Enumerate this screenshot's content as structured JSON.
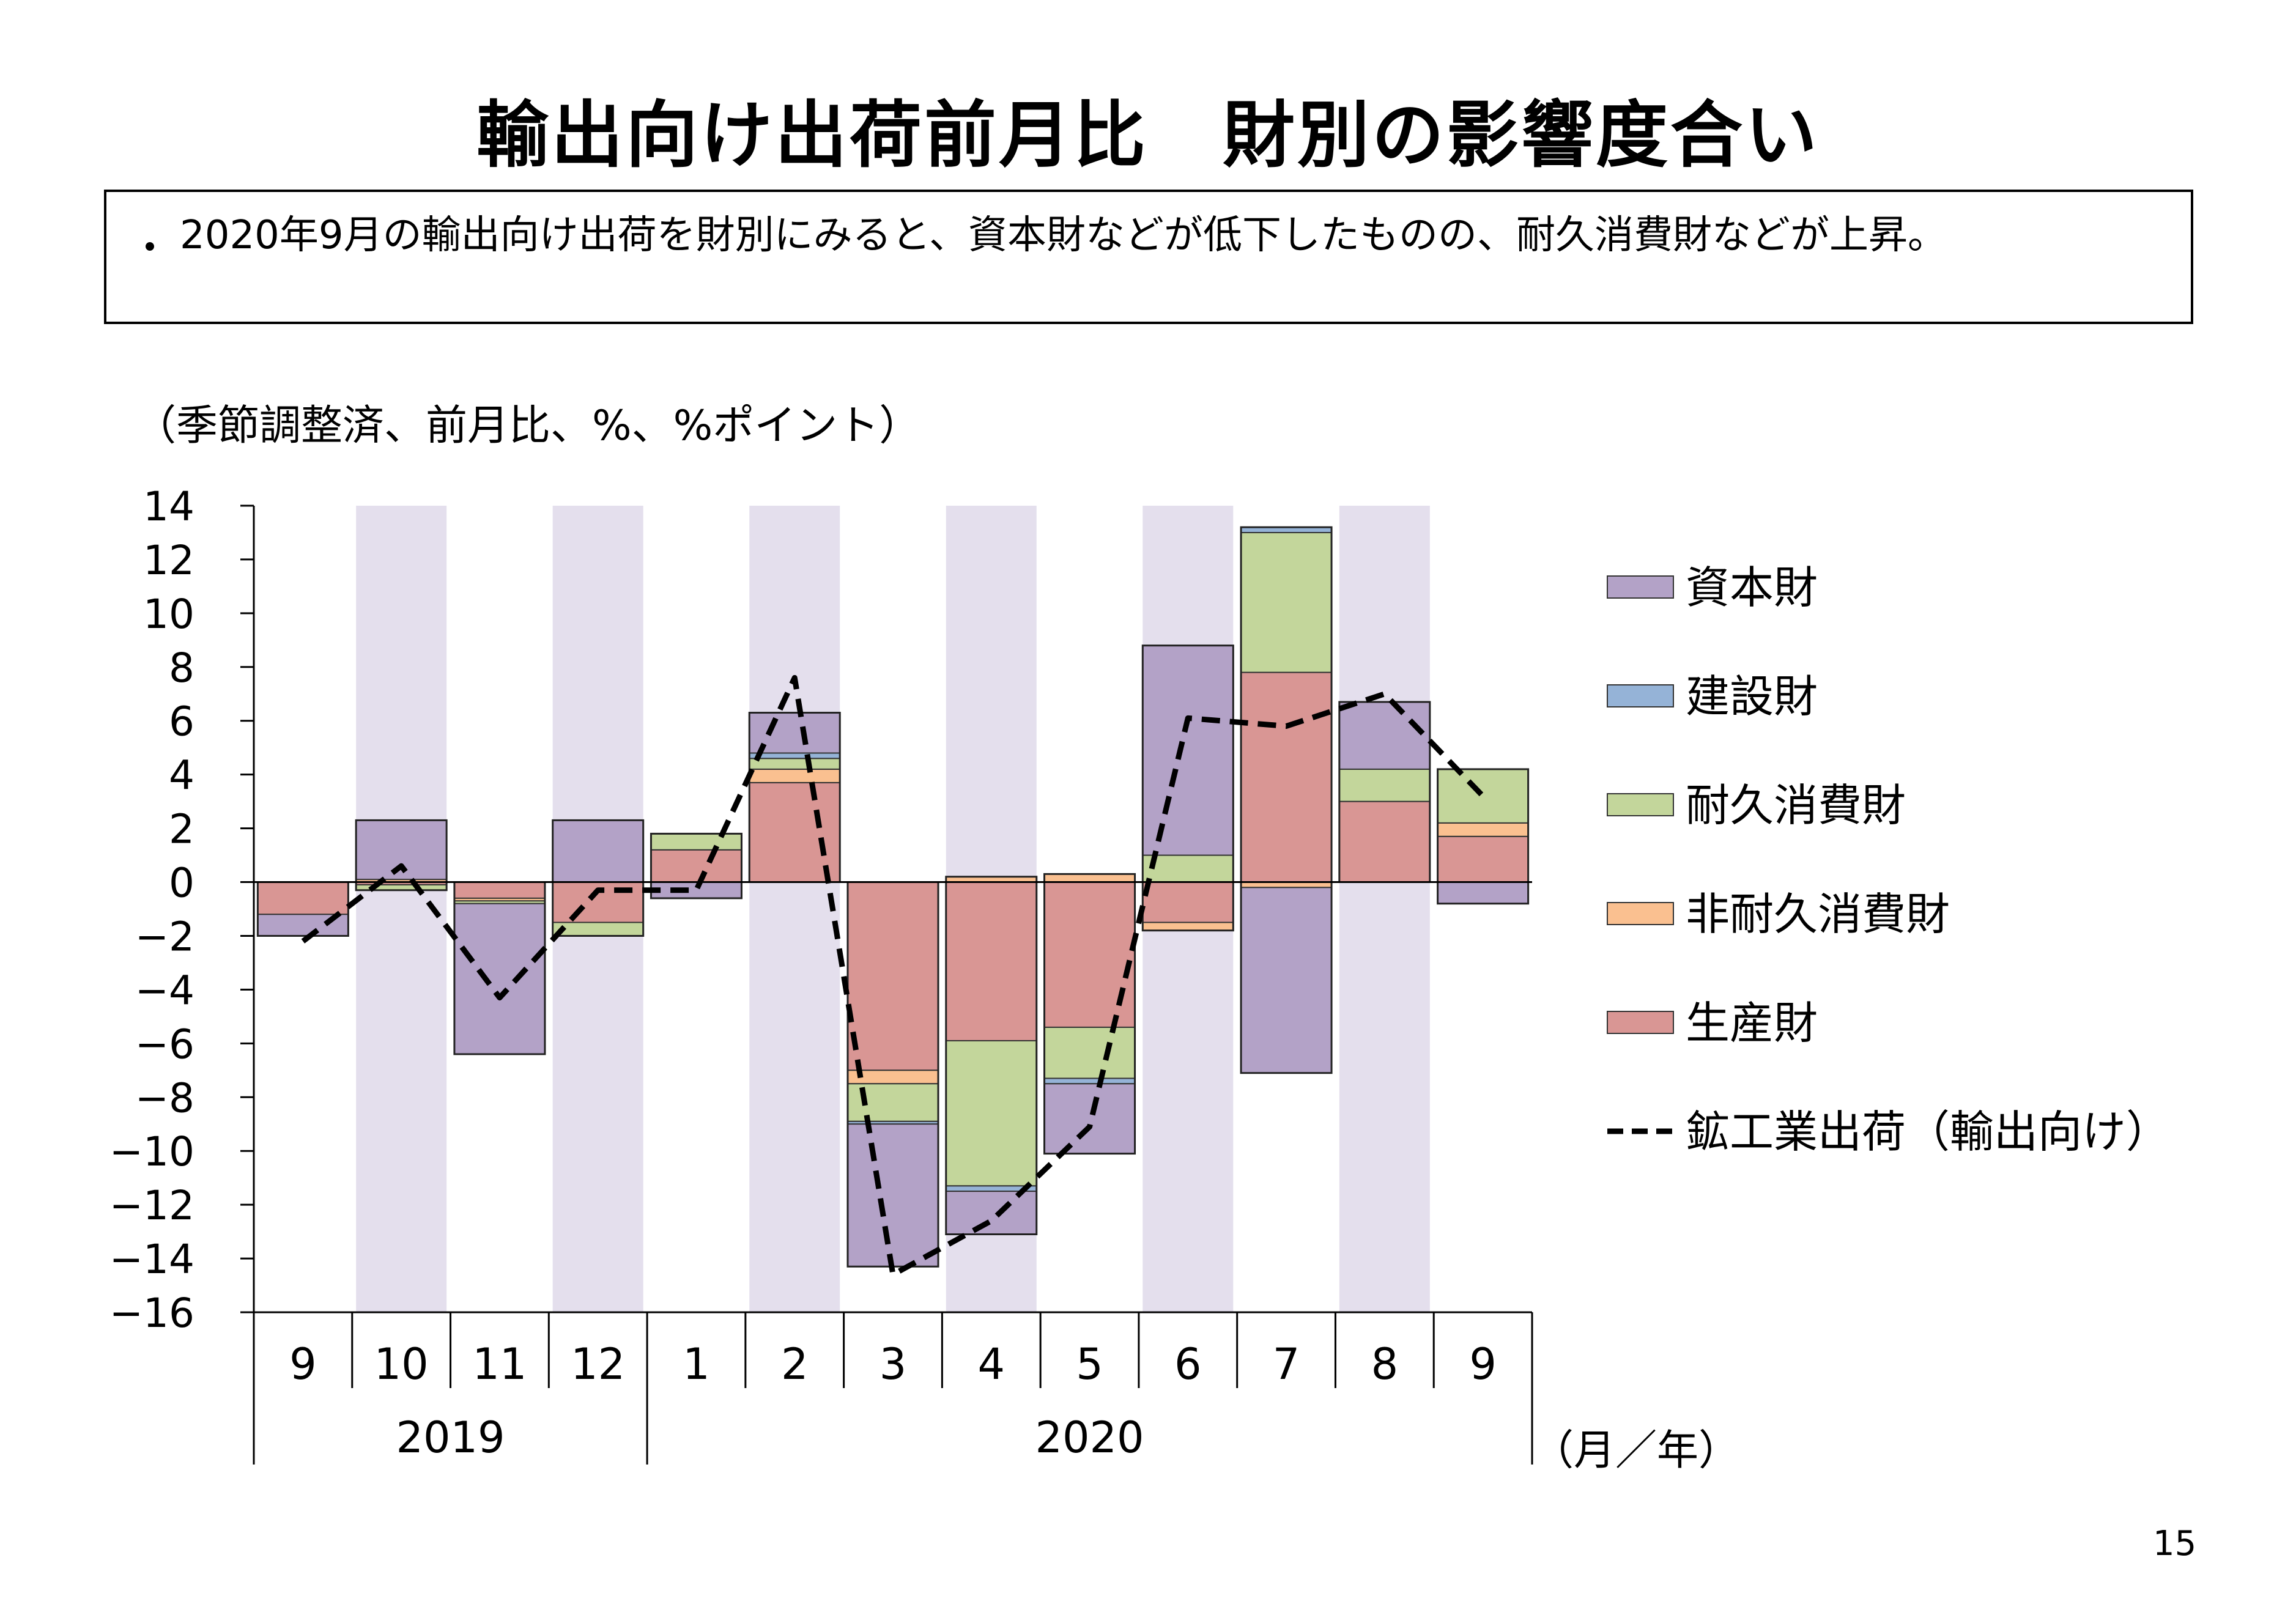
{
  "title": "輸出向け出荷前月比　財別の影響度合い",
  "summary": {
    "bullet": "・",
    "text": "2020年9月の輸出向け出荷を財別にみると、資本財などが低下したものの、耐久消費財などが上昇。"
  },
  "unit_note": "（季節調整済、前月比、%、%ポイント）",
  "x_unit_label": "（月／年）",
  "page_number": "15",
  "chart_data": {
    "type": "bar",
    "stacked": true,
    "categories": [
      "9",
      "10",
      "11",
      "12",
      "1",
      "2",
      "3",
      "4",
      "5",
      "6",
      "7",
      "8",
      "9"
    ],
    "year_groups": [
      {
        "label": "2019",
        "start": 0,
        "end": 3
      },
      {
        "label": "2020",
        "start": 4,
        "end": 12
      }
    ],
    "ylim": [
      -16,
      14
    ],
    "yticks": [
      14,
      12,
      10,
      8,
      6,
      4,
      2,
      0,
      -2,
      -4,
      -6,
      -8,
      -10,
      -12,
      -14,
      -16
    ],
    "shaded_categories": [
      1,
      3,
      5,
      7,
      9,
      11
    ],
    "shade_color": "#e4dfed",
    "series": [
      {
        "name": "生産財",
        "color": "#d99694",
        "values": [
          -1.2,
          -0.1,
          -0.6,
          -1.5,
          1.2,
          3.7,
          -7.0,
          -5.9,
          -5.4,
          -1.5,
          7.8,
          3.0,
          1.7
        ]
      },
      {
        "name": "非耐久消費財",
        "color": "#fac090",
        "values": [
          0.0,
          0.1,
          -0.1,
          0.0,
          0.0,
          0.5,
          -0.5,
          0.2,
          0.3,
          -0.3,
          -0.2,
          0.0,
          0.5
        ]
      },
      {
        "name": "耐久消費財",
        "color": "#c3d69b",
        "values": [
          0.0,
          -0.2,
          -0.1,
          -0.5,
          0.6,
          0.4,
          -1.4,
          -5.4,
          -1.9,
          1.0,
          5.2,
          1.2,
          2.0
        ]
      },
      {
        "name": "建設財",
        "color": "#95b3d7",
        "values": [
          0.0,
          0.0,
          0.0,
          0.0,
          0.0,
          0.2,
          -0.1,
          -0.2,
          -0.2,
          0.0,
          0.2,
          0.0,
          0.0
        ]
      },
      {
        "name": "資本財",
        "color": "#b3a2c7",
        "values": [
          -0.8,
          2.2,
          -5.6,
          2.3,
          -0.6,
          1.5,
          -5.3,
          -1.6,
          -2.6,
          7.8,
          -6.9,
          2.5,
          -0.8
        ]
      }
    ],
    "line": {
      "name": "鉱工業出荷（輸出向け）",
      "color": "#000000",
      "style": "dashed",
      "values": [
        -2.2,
        0.6,
        -4.3,
        -0.3,
        -0.3,
        7.6,
        -14.6,
        -12.6,
        -9.1,
        6.1,
        5.8,
        7.0,
        3.2
      ]
    },
    "legend": {
      "placement": "right",
      "order": [
        "資本財",
        "建設財",
        "耐久消費財",
        "非耐久消費財",
        "生産財",
        "鉱工業出荷（輸出向け）"
      ]
    }
  }
}
